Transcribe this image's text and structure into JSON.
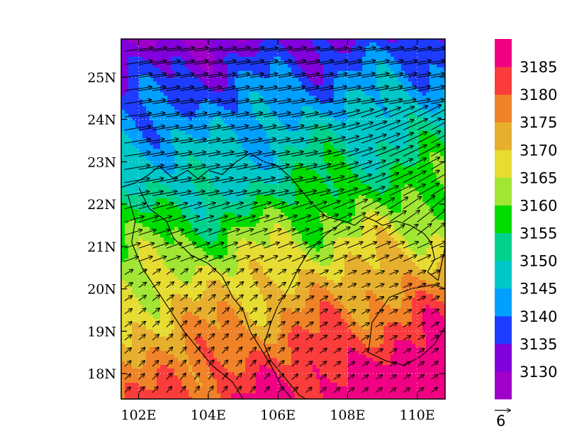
{
  "chart_data": {
    "type": "heatmap",
    "title": "",
    "xlabel": "",
    "ylabel": "",
    "x_ticks": [
      "102E",
      "104E",
      "106E",
      "108E",
      "110E"
    ],
    "x_tick_values": [
      102,
      104,
      106,
      108,
      110
    ],
    "y_ticks": [
      "18N",
      "19N",
      "20N",
      "21N",
      "22N",
      "23N",
      "24N",
      "25N"
    ],
    "y_tick_values": [
      18,
      19,
      20,
      21,
      22,
      23,
      24,
      25
    ],
    "xlim": [
      101.5,
      110.8
    ],
    "ylim": [
      17.4,
      25.9
    ],
    "grid": "dotted",
    "colorbar": {
      "levels": [
        3130,
        3135,
        3140,
        3145,
        3150,
        3155,
        3160,
        3165,
        3170,
        3175,
        3180,
        3185
      ],
      "labels": [
        "3130",
        "3135",
        "3140",
        "3145",
        "3150",
        "3155",
        "3160",
        "3165",
        "3170",
        "3175",
        "3180",
        "3185"
      ],
      "colors": [
        "#a000c8",
        "#8200dc",
        "#1e3cff",
        "#00a0ff",
        "#00c8c8",
        "#00d28c",
        "#00dc00",
        "#a0e632",
        "#e6dc32",
        "#e6af2d",
        "#f08228",
        "#fa3c3c",
        "#f00082"
      ]
    },
    "vector_reference": {
      "label": "6"
    }
  }
}
